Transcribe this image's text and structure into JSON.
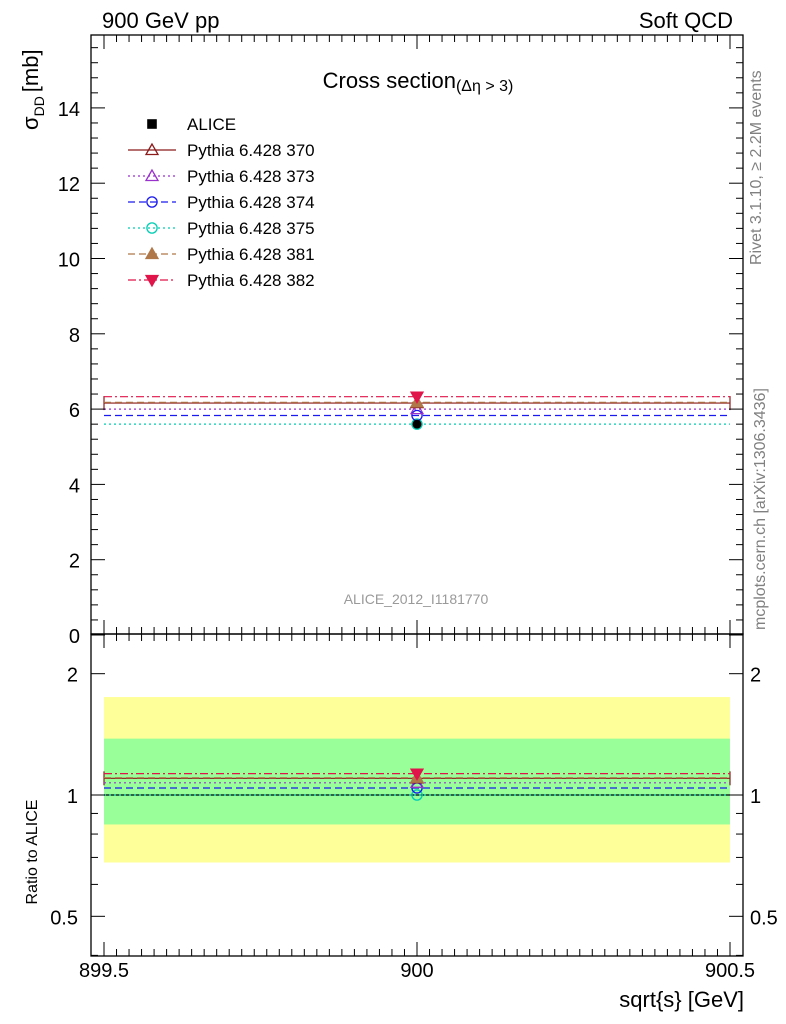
{
  "header": {
    "left": "900 GeV pp",
    "right": "Soft QCD"
  },
  "side_text": {
    "rivet": "Rivet 3.1.10, ≥ 2.2M events",
    "mcplots": "mcplots.cern.ch [arXiv:1306.3436]"
  },
  "watermark": "ALICE_2012_I1181770",
  "colors": {
    "ALICE": "#000000",
    "p370": "#8b1a1a",
    "p373": "#9932cc",
    "p374": "#1a1aee",
    "p375": "#00cdb3",
    "p381": "#b07848",
    "p382": "#e0154a",
    "band_outer": "#ffff99",
    "band_inner": "#99ff99"
  },
  "chart_data": [
    {
      "type": "scatter",
      "title": "Cross section",
      "title_suffix": "(Δη > 3)",
      "ylabel_main": "σ",
      "ylabel_sub": "DD",
      "ylabel_unit": "[mb]",
      "xlim": [
        899.5,
        900.5
      ],
      "ylim": [
        0,
        16
      ],
      "yticks": [
        0,
        2,
        4,
        6,
        8,
        10,
        12,
        14
      ],
      "legend_position": "top-left",
      "series": [
        {
          "name": "ALICE",
          "key": "ALICE",
          "marker": "square-filled",
          "x": [
            900
          ],
          "y": [
            5.6
          ],
          "yerr": [
            0.0
          ],
          "line": "none"
        },
        {
          "name": "Pythia 6.428 370",
          "key": "p370",
          "marker": "triangle-up-open",
          "x": [
            900
          ],
          "y": [
            6.16
          ],
          "line": "solid"
        },
        {
          "name": "Pythia 6.428 373",
          "key": "p373",
          "marker": "triangle-up-open",
          "x": [
            900
          ],
          "y": [
            6.0
          ],
          "line": "dotted"
        },
        {
          "name": "Pythia 6.428 374",
          "key": "p374",
          "marker": "circle-open",
          "x": [
            900
          ],
          "y": [
            5.83
          ],
          "line": "dashed"
        },
        {
          "name": "Pythia 6.428 375",
          "key": "p375",
          "marker": "circle-open",
          "x": [
            900
          ],
          "y": [
            5.6
          ],
          "line": "dotted"
        },
        {
          "name": "Pythia 6.428 381",
          "key": "p381",
          "marker": "triangle-up-filled",
          "x": [
            900
          ],
          "y": [
            6.18
          ],
          "line": "dashed"
        },
        {
          "name": "Pythia 6.428 382",
          "key": "p382",
          "marker": "triangle-down-filled",
          "x": [
            900
          ],
          "y": [
            6.33
          ],
          "line": "dashdot"
        }
      ]
    },
    {
      "type": "scatter",
      "ylabel": "Ratio to ALICE",
      "xlabel": "sqrt{s} [GeV]",
      "xlim": [
        899.5,
        900.5
      ],
      "ylim": [
        0.35,
        2.3
      ],
      "scale": "log",
      "yticks": [
        0.5,
        1,
        2
      ],
      "xticks": [
        899.5,
        900,
        900.5
      ],
      "bands": {
        "outer": [
          0.68,
          1.75
        ],
        "inner": [
          0.845,
          1.38
        ]
      },
      "series": [
        {
          "key": "ALICE",
          "y": 1.0,
          "line": "solid"
        },
        {
          "key": "p370",
          "y": 1.1,
          "line": "solid"
        },
        {
          "key": "p373",
          "y": 1.072,
          "line": "dotted"
        },
        {
          "key": "p374",
          "y": 1.041,
          "line": "dashed"
        },
        {
          "key": "p375",
          "y": 1.0,
          "line": "dotted"
        },
        {
          "key": "p381",
          "y": 1.104,
          "line": "dashed"
        },
        {
          "key": "p382",
          "y": 1.13,
          "line": "dashdot"
        }
      ]
    }
  ]
}
